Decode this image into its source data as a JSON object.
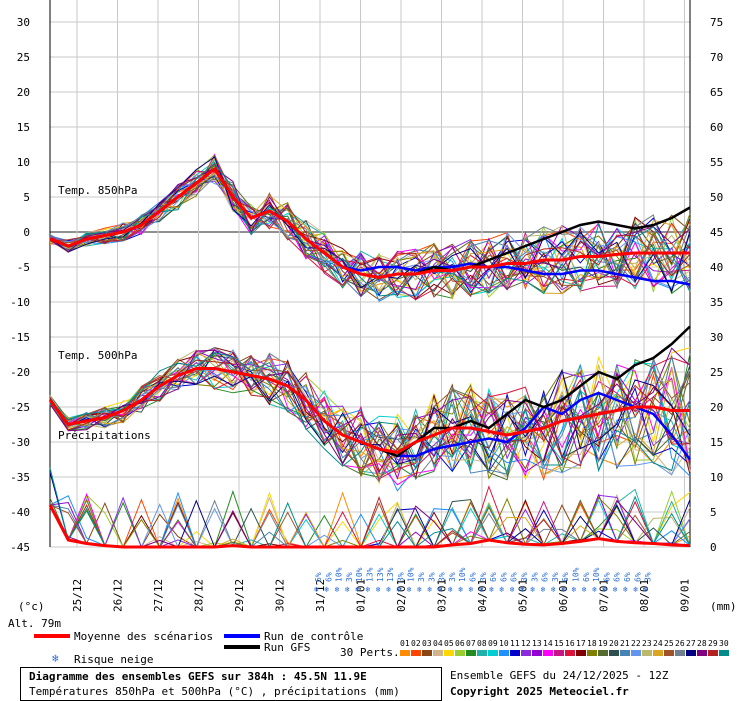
{
  "chart_data": {
    "type": "line",
    "left_axis": {
      "ticks": [
        "30",
        "25",
        "20",
        "15",
        "10",
        "5",
        "0",
        "-5",
        "-10",
        "-15",
        "-20",
        "-25",
        "-30",
        "-35",
        "-40",
        "-45"
      ],
      "unit_label": "(°c)"
    },
    "right_axis": {
      "ticks": [
        "75",
        "70",
        "65",
        "60",
        "55",
        "50",
        "45",
        "40",
        "35",
        "30",
        "25",
        "20",
        "15",
        "10",
        "5",
        "0"
      ],
      "unit_label": "(mm)"
    },
    "x_labels": [
      "25/12",
      "26/12",
      "27/12",
      "28/12",
      "29/12",
      "30/12",
      "31/12",
      "01/01",
      "02/01",
      "03/01",
      "04/01",
      "05/01",
      "06/01",
      "07/01",
      "08/01",
      "09/01"
    ],
    "panel_labels": {
      "t850": "Temp. 850hPa",
      "t500": "Temp. 500hPa",
      "precip": "Précipitations"
    },
    "mean_850": [
      -1,
      -2,
      -1,
      -0.5,
      0,
      1,
      3,
      5,
      7,
      9,
      5,
      2,
      3,
      1.5,
      -1,
      -3,
      -5,
      -6,
      -6.5,
      -6,
      -6,
      -5.5,
      -5.5,
      -5,
      -5,
      -4.5,
      -4.5,
      -4,
      -4,
      -3.5,
      -3.5,
      -3.2,
      -3,
      -3,
      -3,
      -3
    ],
    "control_850": [
      -1,
      -2,
      -1,
      -0.5,
      0,
      1,
      3,
      5,
      7,
      9,
      5,
      2,
      3,
      1.5,
      -1,
      -3,
      -5,
      -5.5,
      -5,
      -5,
      -5.5,
      -5,
      -5,
      -4.5,
      -5,
      -5,
      -5.5,
      -6,
      -6,
      -5.5,
      -5.5,
      -6,
      -6.5,
      -7,
      -7,
      -7.5
    ],
    "gfs_850": [
      -1,
      -2,
      -1,
      -0.5,
      0,
      1,
      3,
      5,
      7,
      9,
      5,
      2,
      3,
      1.5,
      -1,
      -3,
      -5,
      -6,
      -6.5,
      -6,
      -6,
      -5,
      -5.5,
      -5,
      -4,
      -3,
      -2,
      -1,
      0,
      1,
      1.5,
      1,
      0.5,
      1,
      2,
      3.5
    ],
    "mean_500": [
      -24,
      -27.5,
      -27,
      -26.5,
      -25.5,
      -24,
      -22,
      -20.5,
      -19.5,
      -19.5,
      -20,
      -20.5,
      -21,
      -22,
      -24,
      -27,
      -29,
      -30,
      -31,
      -31.5,
      -30,
      -29,
      -28,
      -28,
      -28.5,
      -29,
      -28.5,
      -28,
      -27,
      -26.5,
      -26,
      -25.5,
      -25,
      -25,
      -25.5,
      -25.5
    ],
    "control_500": [
      -24,
      -27.5,
      -27,
      -26.5,
      -25.5,
      -24,
      -22,
      -20.5,
      -19.5,
      -19.5,
      -20,
      -20.5,
      -21,
      -22,
      -24,
      -27,
      -29,
      -30,
      -31,
      -32,
      -32,
      -31,
      -30.5,
      -30,
      -29.5,
      -30,
      -28,
      -25,
      -26,
      -24,
      -23,
      -24,
      -25,
      -26,
      -29,
      -32.5
    ],
    "gfs_500": [
      -24,
      -27.5,
      -27,
      -26.5,
      -25.5,
      -24,
      -22,
      -20.5,
      -19.5,
      -19.5,
      -20,
      -20.5,
      -21,
      -22,
      -24,
      -27,
      -29,
      -30,
      -31,
      -32,
      -30,
      -28,
      -28,
      -27,
      -28,
      -26,
      -24,
      -25,
      -24,
      -22,
      -20,
      -21,
      -19,
      -18,
      -16,
      -13.5
    ],
    "mean_precip": [
      6,
      1,
      0.5,
      0.2,
      0,
      0,
      0,
      0,
      0,
      0,
      0.2,
      0,
      0,
      0,
      0,
      0,
      0,
      0,
      0,
      0,
      0,
      0,
      0.3,
      0.5,
      1,
      0.6,
      0.4,
      0.3,
      0.5,
      0.8,
      1.2,
      0.8,
      0.6,
      0.5,
      0.3,
      0.2
    ],
    "snow_risk_labels": [
      "6%",
      "6%",
      "10%",
      "3%",
      "10%",
      "13%",
      "13%",
      "13%",
      "3%",
      "10%",
      "3%",
      "3%",
      "3%",
      "3%",
      "10%",
      "6%",
      "3%",
      "6%",
      "6%",
      "6%",
      "3%",
      "3%",
      "6%",
      "3%",
      "6%",
      "10%",
      "6%",
      "10%",
      "6%",
      "6%",
      "6%",
      "6%",
      "3%"
    ],
    "x_range_hours": [
      0,
      384
    ]
  },
  "altitude_label": "Alt. 79m",
  "legend": {
    "mean_label": "Moyenne des scénarios",
    "control_label": "Run de contrôle",
    "gfs_label": "Run GFS",
    "snow_label": "Risque neige",
    "perts_label": "30 Perts.",
    "pert_numbers": [
      "01",
      "02",
      "03",
      "04",
      "05",
      "06",
      "07",
      "08",
      "09",
      "10",
      "11",
      "12",
      "13",
      "14",
      "15",
      "16",
      "17",
      "18",
      "19",
      "20",
      "21",
      "22",
      "23",
      "24",
      "25",
      "26",
      "27",
      "28",
      "29",
      "30"
    ],
    "pert_colors": [
      "#ff8c00",
      "#ff4500",
      "#8b4513",
      "#d2b48c",
      "#ffd700",
      "#9acd32",
      "#228b22",
      "#20b2aa",
      "#00ced1",
      "#1e90ff",
      "#0000cd",
      "#8a2be2",
      "#9400d3",
      "#ff00ff",
      "#c71585",
      "#dc143c",
      "#800000",
      "#808000",
      "#556b2f",
      "#2f4f4f",
      "#4682b4",
      "#6495ed",
      "#bdb76b",
      "#daa520",
      "#a0522d",
      "#708090",
      "#000080",
      "#800080",
      "#b22222",
      "#008b8b"
    ],
    "colors": {
      "mean": "#ff0000",
      "control": "#0000ff",
      "gfs": "#000000",
      "snow": "#2a6fd6"
    }
  },
  "footer": {
    "title": "Diagramme des ensembles GEFS sur 384h : 45.5N 11.9E",
    "subtitle": "Températures 850hPa et 500hPa (°C) , précipitations (mm)",
    "run": "Ensemble GEFS du 24/12/2025 - 12Z",
    "copyright": "Copyright 2025 Meteociel.fr"
  }
}
